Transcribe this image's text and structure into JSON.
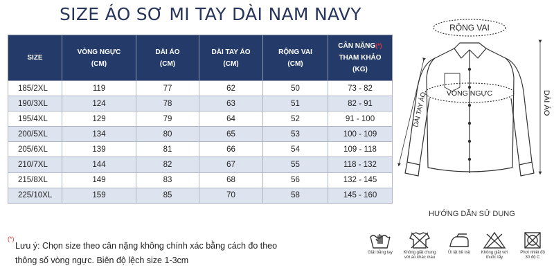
{
  "title": "SIZE ÁO SƠ MI TAY DÀI NAM NAVY",
  "table": {
    "headers": [
      [
        "SIZE"
      ],
      [
        "VÒNG NGỰC",
        "(CM)"
      ],
      [
        "DÀI ÁO",
        "(CM)"
      ],
      [
        "DÀI TAY ÁO",
        "(CM)"
      ],
      [
        "RỘNG VAI",
        "(CM)"
      ],
      [
        "CÂN NẶNG",
        "THAM KHẢO",
        "(KG)"
      ]
    ],
    "required_mark": "(*)",
    "rows": [
      [
        "185/2XL",
        "119",
        "77",
        "62",
        "50",
        "73 - 82"
      ],
      [
        "190/3XL",
        "124",
        "78",
        "63",
        "51",
        "82 - 91"
      ],
      [
        "195/4XL",
        "129",
        "79",
        "64",
        "52",
        "91 - 100"
      ],
      [
        "200/5XL",
        "134",
        "80",
        "65",
        "53",
        "100 - 109"
      ],
      [
        "205/6XL",
        "139",
        "81",
        "66",
        "54",
        "109 - 118"
      ],
      [
        "210/7XL",
        "144",
        "82",
        "67",
        "55",
        "118 - 132"
      ],
      [
        "215/8XL",
        "149",
        "83",
        "68",
        "56",
        "132 - 145"
      ],
      [
        "225/10XL",
        "159",
        "85",
        "70",
        "58",
        "145 - 160"
      ]
    ]
  },
  "note": {
    "mark": "(*)",
    "line1": "Lưu ý: Chọn size theo cân nặng không chính xác bằng cách đo theo",
    "line2": "thông số vòng ngực. Biên độ lệch size 1-3cm"
  },
  "diagram": {
    "shoulder_label": "RỘNG VAI",
    "chest_label": "VÒNG NGỰC",
    "sleeve_label": "DÀI TAY ÁO",
    "length_label": "DÀI ÁO"
  },
  "guide_title": "HƯỚNG DẪN SỬ DỤNG",
  "care_icons": [
    {
      "icon": "hand-wash-icon",
      "label_1": "Giặt bằng tay",
      "label_2": ""
    },
    {
      "icon": "no-mix-wash-icon",
      "label_1": "Không giặt chung",
      "label_2": "với áo khác màu"
    },
    {
      "icon": "iron-icon",
      "label_1": "Ủi lật bề trái",
      "label_2": ""
    },
    {
      "icon": "no-dryer-icon",
      "label_1": "Không giặt với",
      "label_2": "thuốc tẩy"
    },
    {
      "icon": "sun-dry-icon",
      "label_1": "Phơi nhiệt độ",
      "label_2": "30 độ C"
    }
  ],
  "colors": {
    "navy": "#243b6a",
    "title": "#27355b",
    "stripe": "#dde3ef",
    "accent": "#e0303a"
  }
}
